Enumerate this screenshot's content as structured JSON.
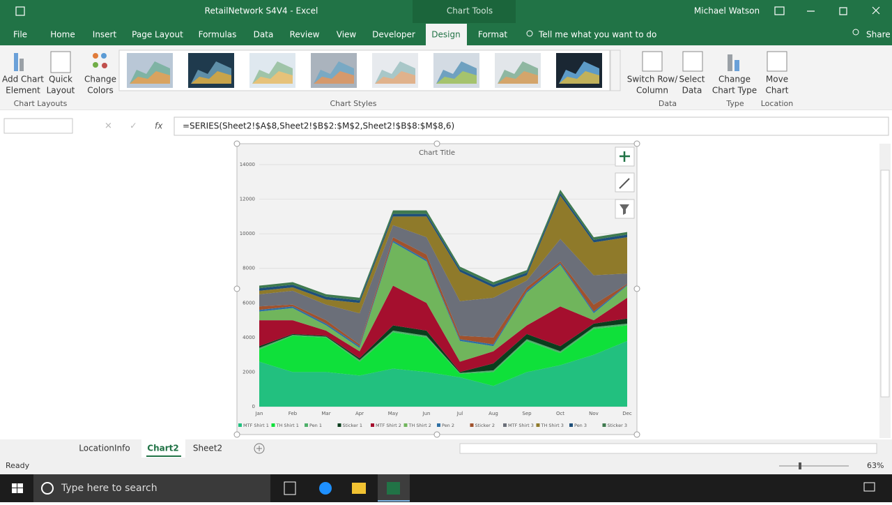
{
  "window": {
    "document": "RetailNetwork S4V4 - Excel",
    "context": "Chart Tools",
    "user": "Michael Watson"
  },
  "tabs": [
    "File",
    "Home",
    "Insert",
    "Page Layout",
    "Formulas",
    "Data",
    "Review",
    "View",
    "Developer",
    "Design",
    "Format"
  ],
  "tell_me": "Tell me what you want to do",
  "share": "Share",
  "ribbon": {
    "buttons": [
      [
        "Add Chart",
        "Element"
      ],
      [
        "Quick",
        "Layout"
      ],
      [
        "Change",
        "Colors"
      ],
      [
        "Switch Row/",
        "Column"
      ],
      [
        "Select",
        "Data"
      ],
      [
        "Change",
        "Chart Type"
      ],
      [
        "Move",
        "Chart"
      ]
    ],
    "groups": [
      "Chart Layouts",
      "Chart Styles",
      "Data",
      "Type",
      "Location"
    ]
  },
  "formula_bar": {
    "fx": "fx",
    "formula": "=SERIES(Sheet2!$A$8,Sheet2!$B$2:$M$2,Sheet2!$B$8:$M$8,6)"
  },
  "sheets": [
    "LocationInfo",
    "Chart2",
    "Sheet2"
  ],
  "status": {
    "ready": "Ready",
    "zoom": "63%"
  },
  "taskbar": {
    "search": "Type here to search"
  },
  "chart_data": {
    "type": "stacked-area",
    "title": "Chart Title",
    "categories": [
      "Jan",
      "Feb",
      "Mar",
      "Apr",
      "May",
      "Jun",
      "Jul",
      "Aug",
      "Sep",
      "Oct",
      "Nov",
      "Dec"
    ],
    "ylim": [
      0,
      14000
    ],
    "yticks": [
      0,
      2000,
      4000,
      6000,
      8000,
      10000,
      12000,
      14000
    ],
    "grid": true,
    "legend": "bottom",
    "series": [
      {
        "name": "MTF Shirt 1",
        "color": "#22c07f",
        "values": [
          2600,
          2000,
          2000,
          1800,
          2200,
          2000,
          1700,
          1200,
          2000,
          2400,
          3000,
          3800
        ]
      },
      {
        "name": "TH Shirt 1",
        "color": "#0fe03a",
        "values": [
          700,
          2100,
          2000,
          800,
          2100,
          2000,
          200,
          800,
          1800,
          700,
          1500,
          900
        ]
      },
      {
        "name": "Pen 1",
        "color": "#4fb06a",
        "values": [
          100,
          50,
          50,
          100,
          100,
          100,
          50,
          100,
          100,
          100,
          100,
          100
        ]
      },
      {
        "name": "Sticker 1",
        "color": "#0b3d1d",
        "values": [
          100,
          50,
          50,
          100,
          300,
          300,
          50,
          400,
          300,
          300,
          200,
          300
        ]
      },
      {
        "name": "MTF Shirt 2",
        "color": "#a50f2e",
        "values": [
          1500,
          800,
          300,
          400,
          2300,
          1600,
          600,
          700,
          500,
          2300,
          200,
          1200
        ]
      },
      {
        "name": "TH Shirt 2",
        "color": "#70b55c",
        "values": [
          500,
          700,
          300,
          200,
          2500,
          2400,
          1200,
          300,
          1900,
          2400,
          400,
          700
        ]
      },
      {
        "name": "Pen 2",
        "color": "#2e6fa3",
        "values": [
          100,
          100,
          100,
          100,
          100,
          100,
          100,
          100,
          100,
          100,
          100,
          50
        ]
      },
      {
        "name": "Sticker 2",
        "color": "#a0522d",
        "values": [
          200,
          100,
          200,
          100,
          200,
          300,
          200,
          400,
          200,
          100,
          400,
          50
        ]
      },
      {
        "name": "MTF Shirt 3",
        "color": "#6b6f79",
        "values": [
          700,
          800,
          900,
          1800,
          700,
          1000,
          2000,
          2300,
          400,
          1300,
          1700,
          600
        ]
      },
      {
        "name": "TH Shirt 3",
        "color": "#8f7a2a",
        "values": [
          200,
          200,
          300,
          600,
          500,
          1200,
          1700,
          600,
          300,
          2500,
          1900,
          2100
        ]
      },
      {
        "name": "Pen 3",
        "color": "#1e4f7a",
        "values": [
          150,
          150,
          150,
          150,
          150,
          150,
          150,
          150,
          150,
          150,
          150,
          150
        ]
      },
      {
        "name": "Sticker 3",
        "color": "#3f7a4f",
        "values": [
          150,
          150,
          150,
          150,
          200,
          200,
          150,
          150,
          150,
          200,
          150,
          150
        ]
      }
    ]
  }
}
